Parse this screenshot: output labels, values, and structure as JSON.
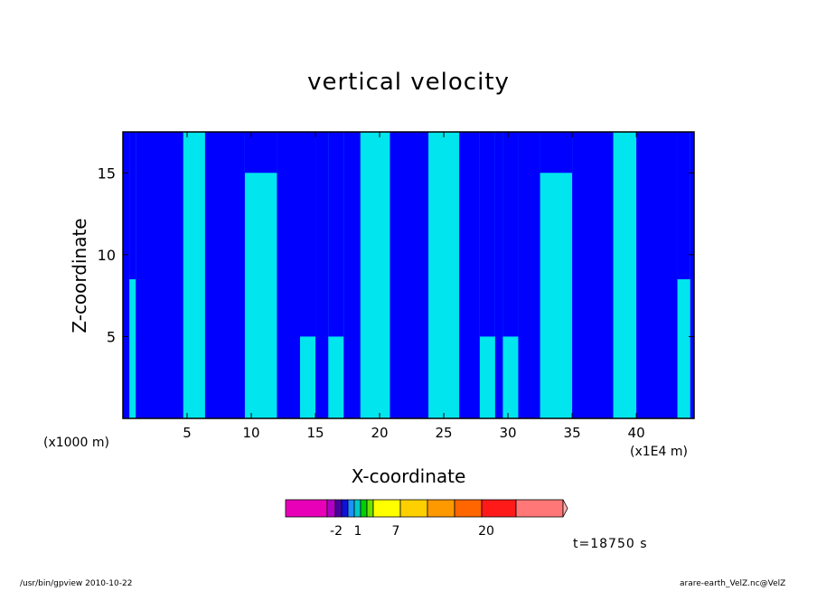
{
  "chart_data": {
    "type": "heatmap",
    "title": "vertical velocity",
    "xlabel": "X-coordinate",
    "ylabel": "Z-coordinate",
    "x_unit_left": "(x1000 m)",
    "x_unit_right": "(x1E4 m)",
    "xlim": [
      0,
      44.5
    ],
    "ylim": [
      0,
      17.5
    ],
    "x_ticks": [
      5,
      10,
      15,
      20,
      25,
      30,
      35,
      40
    ],
    "y_ticks": [
      5,
      10,
      15
    ],
    "grid": false,
    "background_color": "#0000ff",
    "fill_color": "#00e5ee",
    "columns_shallow": [
      {
        "x0": 0.5,
        "x1": 1.0,
        "ztop": 8.5
      },
      {
        "x0": 4.7,
        "x1": 6.4,
        "ztop": 17.5
      },
      {
        "x0": 9.5,
        "x1": 12.0,
        "ztop": 15.0
      },
      {
        "x0": 13.8,
        "x1": 15.0,
        "ztop": 5.0
      },
      {
        "x0": 16.0,
        "x1": 17.2,
        "ztop": 5.0
      },
      {
        "x0": 18.5,
        "x1": 20.8,
        "ztop": 17.5
      },
      {
        "x0": 23.8,
        "x1": 26.2,
        "ztop": 17.5
      },
      {
        "x0": 27.8,
        "x1": 29.0,
        "ztop": 5.0
      },
      {
        "x0": 29.6,
        "x1": 30.8,
        "ztop": 5.0
      },
      {
        "x0": 32.5,
        "x1": 35.0,
        "ztop": 15.0
      },
      {
        "x0": 38.2,
        "x1": 40.0,
        "ztop": 17.5
      },
      {
        "x0": 43.2,
        "x1": 44.2,
        "ztop": 8.5
      }
    ],
    "colorbar": {
      "colors": [
        "#e800b8",
        "#b000c8",
        "#4a00a0",
        "#1010d8",
        "#1e90ff",
        "#00c8c8",
        "#00d000",
        "#70e000",
        "#ffff00",
        "#ffd000",
        "#ff9900",
        "#ff6600",
        "#ff1a1a",
        "#ff7777",
        "#ffb4b4"
      ],
      "tick_labels": [
        "-2",
        "1",
        "7",
        "20"
      ]
    },
    "time_label": "t=18750 s"
  },
  "footer": {
    "left": "/usr/bin/gpview   2010-10-22",
    "right": "arare-earth_VelZ.nc@VelZ"
  }
}
